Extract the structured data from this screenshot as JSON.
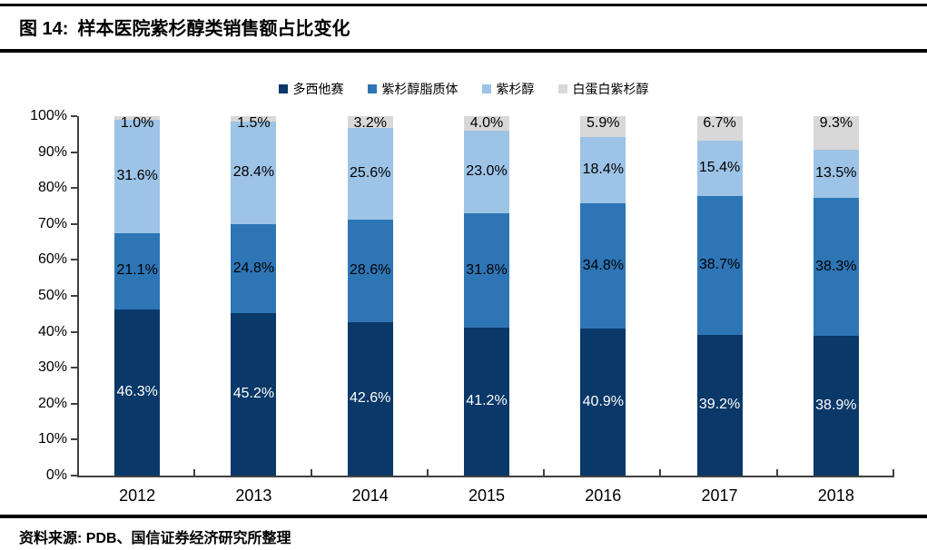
{
  "figure": {
    "label": "图 14:",
    "title": "样本医院紫杉醇类销售额占比变化",
    "source": "资料来源: PDB、国信证券经济研究所整理"
  },
  "chart_data": {
    "type": "bar",
    "stacked": true,
    "title": "样本医院紫杉醇类销售额占比变化",
    "categories": [
      "2012",
      "2013",
      "2014",
      "2015",
      "2016",
      "2017",
      "2018"
    ],
    "series": [
      {
        "name": "多西他赛",
        "color": "#0a3868",
        "label_color": "#ffffff",
        "values": [
          46.3,
          45.2,
          42.6,
          41.2,
          40.9,
          39.2,
          38.9
        ]
      },
      {
        "name": "紫杉醇脂质体",
        "color": "#2e75b5",
        "label_color": "#000000",
        "values": [
          21.1,
          24.8,
          28.6,
          31.8,
          34.8,
          38.7,
          38.3
        ]
      },
      {
        "name": "紫杉醇",
        "color": "#9dc3e6",
        "label_color": "#000000",
        "values": [
          31.6,
          28.4,
          25.6,
          23.0,
          18.4,
          15.4,
          13.5
        ]
      },
      {
        "name": "白蛋白紫杉醇",
        "color": "#d8d8d8",
        "label_color": "#000000",
        "values": [
          1.0,
          1.5,
          3.2,
          4.0,
          5.9,
          6.7,
          9.3
        ]
      }
    ],
    "value_suffix": "%",
    "ylim": [
      0,
      100
    ],
    "y_ticks": [
      "100%",
      "90%",
      "80%",
      "70%",
      "60%",
      "50%",
      "40%",
      "30%",
      "20%",
      "10%",
      "0%"
    ],
    "xlabel": "",
    "ylabel": "",
    "grid": false,
    "legend_position": "top"
  }
}
